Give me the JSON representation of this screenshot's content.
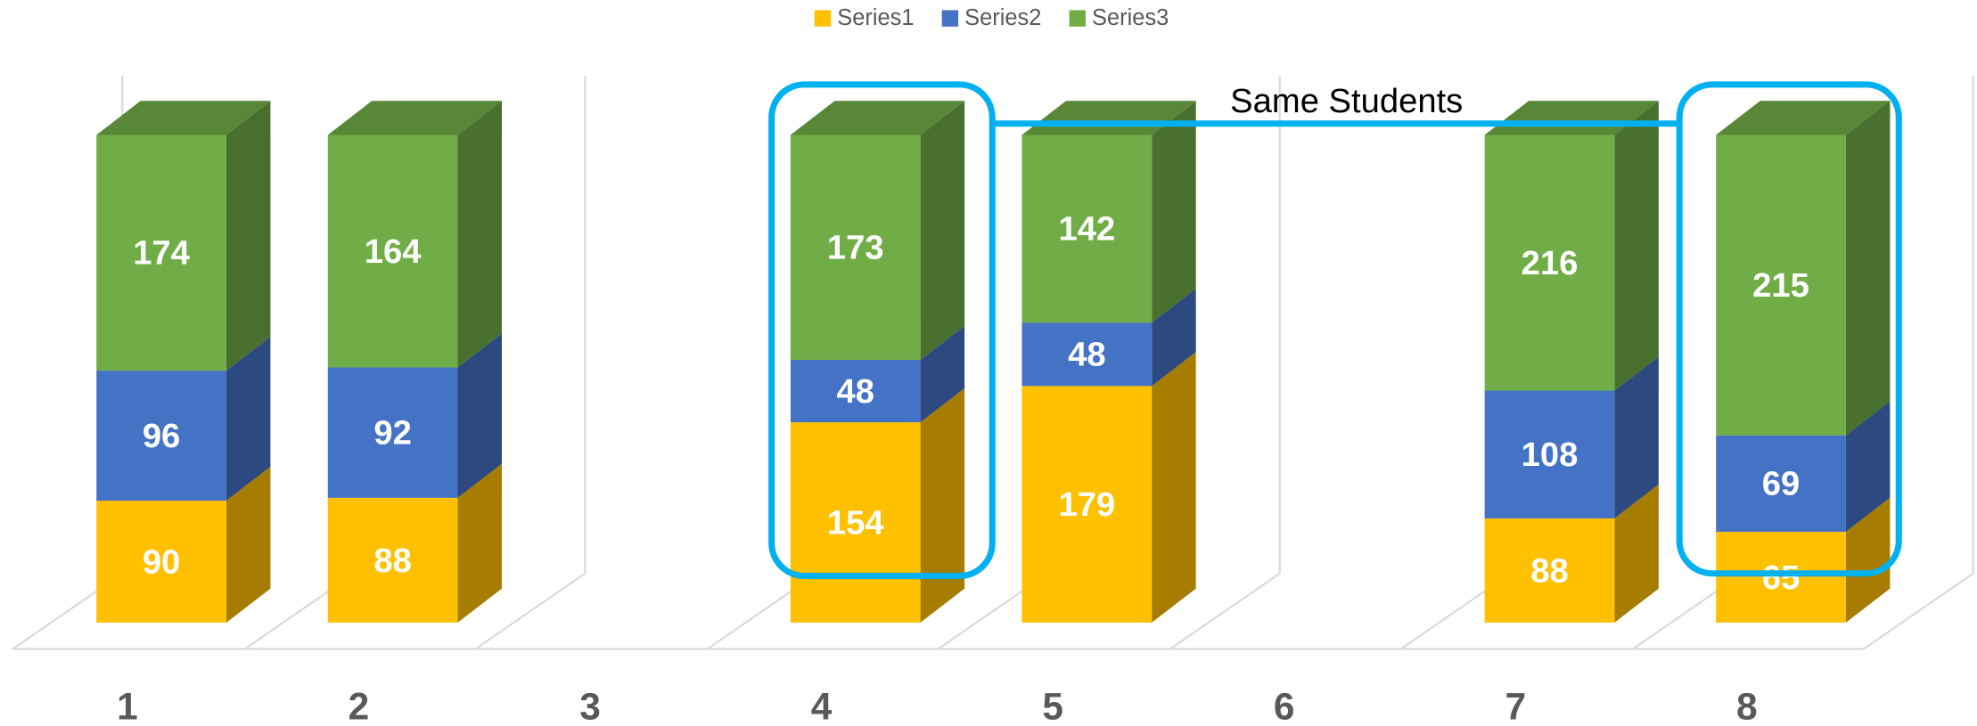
{
  "chart_data": {
    "type": "bar3d_percent_stacked",
    "categories": [
      "1",
      "2",
      "3",
      "4",
      "5",
      "6",
      "7",
      "8"
    ],
    "series": [
      {
        "name": "Series1",
        "color": "#FFC000",
        "values": [
          90,
          88,
          null,
          154,
          179,
          null,
          88,
          65
        ]
      },
      {
        "name": "Series2",
        "color": "#4472C4",
        "values": [
          96,
          92,
          null,
          48,
          48,
          null,
          108,
          69
        ]
      },
      {
        "name": "Series3",
        "color": "#70AD47",
        "values": [
          174,
          164,
          null,
          173,
          142,
          null,
          216,
          215
        ]
      }
    ],
    "annotation": "Same Students"
  }
}
